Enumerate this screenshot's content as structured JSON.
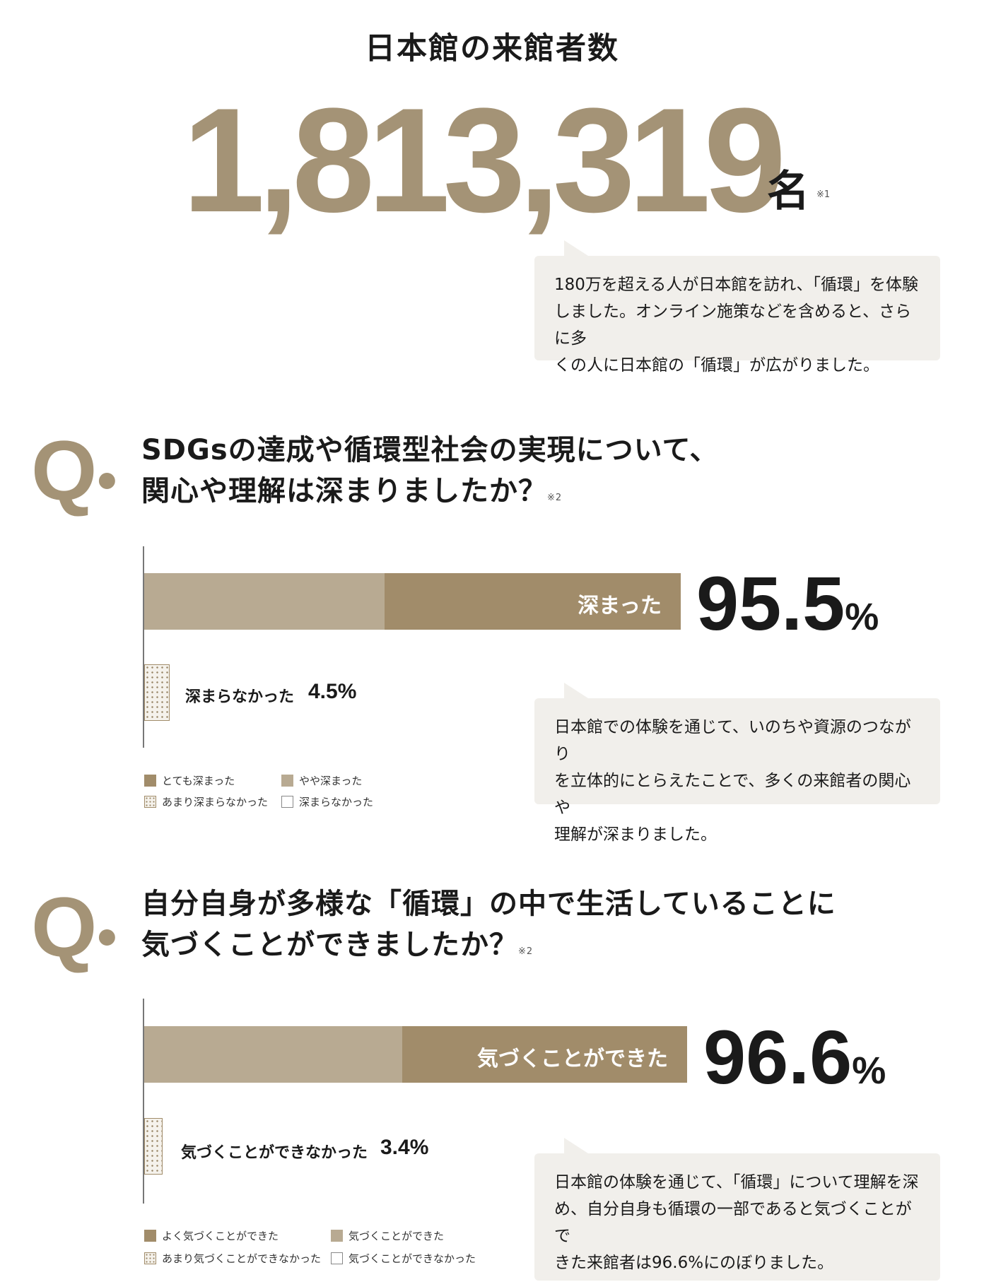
{
  "header": {
    "title": "日本館の来館者数",
    "visitor_count": "1,813,319",
    "visitor_unit": "名",
    "note": "※1"
  },
  "summary_bubble": {
    "text": "180万を超える人が日本館を訪れ、「循環」を体験\nしました。オンライン施策などを含めると、さらに多\nくの人に日本館の「循環」が広がりました。"
  },
  "q_marker": "Q",
  "q_dot": "•",
  "question1": {
    "line1": "SDGsの達成や循環型社会の実現について、",
    "line2": "関心や理解は深まりましたか？",
    "note": "※2",
    "main_label": "深まった",
    "main_value": "95.5",
    "percent_sign": "%",
    "minor_label": "深まらなかった",
    "minor_value": "4.5%",
    "bubble": "日本館での体験を通じて、いのちや資源のつながり\nを立体的にとらえたことで、多くの来館者の関心や\n理解が深まりました。",
    "legend": [
      "とても深まった",
      "やや深まった",
      "あまり深まらなかった",
      "深まらなかった"
    ]
  },
  "question2": {
    "line1": "自分自身が多様な「循環」の中で生活していることに",
    "line2": "気づくことができましたか？",
    "note": "※2",
    "main_label": "気づくことができた",
    "main_value": "96.6",
    "percent_sign": "%",
    "minor_label": "気づくことができなかった",
    "minor_value": "3.4%",
    "bubble": "日本館の体験を通じて、「循環」について理解を深\nめ、自分自身も循環の一部であると気づくことがで\nきた来館者は96.6%にのぼりました。",
    "legend": [
      "よく気づくことができた",
      "気づくことができた",
      "あまり気づくことができなかった",
      "気づくことができなかった"
    ]
  },
  "colors": {
    "accent": "#a49376",
    "bar_dark": "#a18c6a",
    "bar_light": "#b8aa92",
    "bubble_bg": "#f1efeb"
  },
  "chart_data": [
    {
      "type": "bar",
      "orientation": "horizontal",
      "stacked": true,
      "categories": [
        "深まった",
        "深まらなかった"
      ],
      "summary_values": [
        95.5,
        4.5
      ],
      "series": [
        {
          "name": "とても深まった",
          "color": "#a18c6a"
        },
        {
          "name": "やや深まった",
          "color": "#b8aa92"
        },
        {
          "name": "あまり深まらなかった",
          "color": "dotted"
        },
        {
          "name": "深まらなかった",
          "color": "#ffffff"
        }
      ],
      "legend_position": "bottom-left"
    },
    {
      "type": "bar",
      "orientation": "horizontal",
      "stacked": true,
      "categories": [
        "気づくことができた",
        "気づくことができなかった"
      ],
      "summary_values": [
        96.6,
        3.4
      ],
      "series": [
        {
          "name": "よく気づくことができた",
          "color": "#a18c6a"
        },
        {
          "name": "気づくことができた",
          "color": "#b8aa92"
        },
        {
          "name": "あまり気づくことができなかった",
          "color": "dotted"
        },
        {
          "name": "気づくことができなかった",
          "color": "#ffffff"
        }
      ],
      "legend_position": "bottom-left"
    }
  ]
}
